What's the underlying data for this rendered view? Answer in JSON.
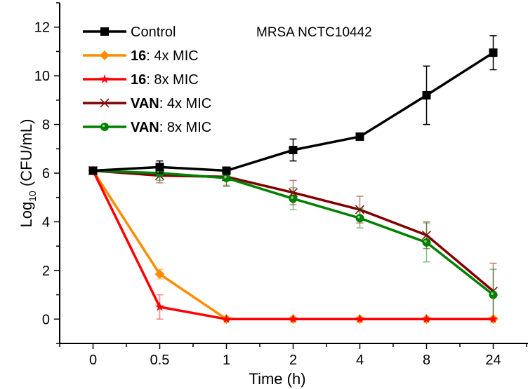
{
  "chart_data": {
    "type": "line",
    "title": "MRSA NCTC10442",
    "xlabel": "Time (h)",
    "ylabel_main": "Log",
    "ylabel_sub": "10",
    "ylabel_rest": " (CFU/mL)",
    "categories": [
      "0",
      "0.5",
      "1",
      "2",
      "4",
      "8",
      "24"
    ],
    "ylim": [
      -1,
      13
    ],
    "yticks": [
      0,
      2,
      4,
      6,
      8,
      10,
      12
    ],
    "grid": false,
    "legend_position": "top-left",
    "series": [
      {
        "name": "Control",
        "name_bold": "",
        "name_rest": "Control",
        "color": "#000000",
        "marker": "square",
        "values": [
          6.1,
          6.25,
          6.1,
          6.95,
          7.5,
          9.2,
          10.95
        ],
        "errors": [
          0.1,
          0.25,
          0.1,
          0.45,
          0.1,
          1.2,
          0.7
        ]
      },
      {
        "name": "16: 4x MIC",
        "name_bold": "16",
        "name_rest": ": 4x MIC",
        "color": "#FF8C00",
        "marker": "diamond",
        "values": [
          6.1,
          1.85,
          0,
          0,
          0,
          0,
          0
        ],
        "errors": [
          0.1,
          0.2,
          0,
          0,
          0,
          0,
          0
        ]
      },
      {
        "name": "16: 8x MIC",
        "name_bold": "16",
        "name_rest": ": 8x MIC",
        "color": "#FF0000",
        "marker": "star",
        "values": [
          6.1,
          0.5,
          0,
          0,
          0,
          0,
          0
        ],
        "errors": [
          0.1,
          0.5,
          0,
          0,
          0,
          0,
          0
        ]
      },
      {
        "name": "VAN: 4x MIC",
        "name_bold": "VAN",
        "name_rest": ": 4x MIC",
        "color": "#800000",
        "marker": "x",
        "values": [
          6.1,
          5.9,
          5.85,
          5.2,
          4.5,
          3.45,
          1.15
        ],
        "errors": [
          0.1,
          0.3,
          0.4,
          0.5,
          0.55,
          0.55,
          1.15
        ]
      },
      {
        "name": "VAN: 8x MIC",
        "name_bold": "VAN",
        "name_rest": ": 8x MIC",
        "color": "#008000",
        "marker": "circle",
        "values": [
          6.1,
          6.0,
          5.8,
          4.95,
          4.15,
          3.15,
          1.0
        ],
        "errors": [
          0.1,
          0.3,
          0.3,
          0.45,
          0.4,
          0.8,
          1.05
        ]
      }
    ]
  }
}
